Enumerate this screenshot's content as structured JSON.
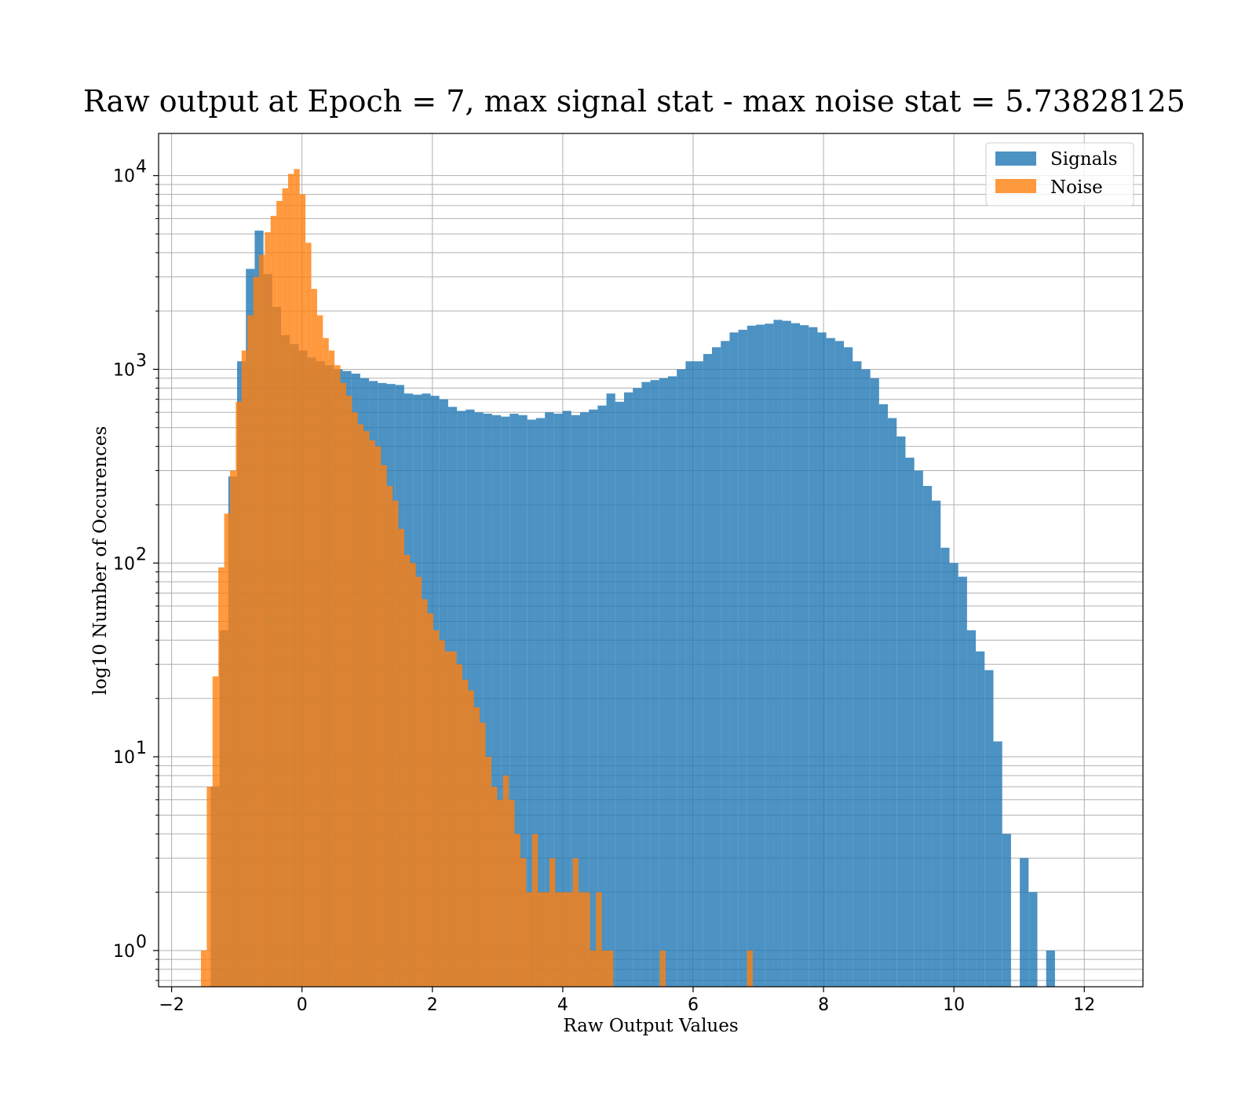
{
  "chart_data": {
    "type": "bar",
    "title": "Raw output at Epoch = 7, max signal stat - max noise stat = 5.73828125",
    "xlabel": "Raw Output Values",
    "ylabel": "log10 Number of Occurences",
    "xlim": [
      -2.2,
      12.9
    ],
    "ylim": [
      0.65,
      16500
    ],
    "yscale": "log",
    "grid": true,
    "legend_position": "top-right",
    "xticks": [
      -2,
      0,
      2,
      4,
      6,
      8,
      10,
      12
    ],
    "xtick_labels": [
      "−2",
      "0",
      "2",
      "4",
      "6",
      "8",
      "10",
      "12"
    ],
    "yticks": [
      1,
      10,
      100,
      1000,
      10000
    ],
    "ytick_labels": [
      "10",
      "10",
      "10",
      "10",
      "10"
    ],
    "ytick_exponents": [
      "0",
      "1",
      "2",
      "3",
      "4"
    ],
    "series": [
      {
        "name": "Signals",
        "color": "#1f77b4",
        "opacity": 0.8,
        "bin_start": -1.4,
        "bin_width": 0.1349,
        "values": [
          7,
          45,
          280,
          1100,
          3300,
          5200,
          3100,
          2100,
          1500,
          1350,
          1250,
          1150,
          1100,
          1050,
          1000,
          980,
          950,
          900,
          870,
          850,
          840,
          830,
          750,
          740,
          750,
          730,
          700,
          640,
          610,
          620,
          600,
          590,
          580,
          570,
          590,
          580,
          550,
          560,
          600,
          590,
          610,
          580,
          600,
          620,
          650,
          750,
          680,
          760,
          800,
          860,
          880,
          900,
          920,
          1000,
          1100,
          1100,
          1200,
          1300,
          1400,
          1550,
          1600,
          1680,
          1700,
          1720,
          1800,
          1780,
          1730,
          1690,
          1650,
          1550,
          1450,
          1400,
          1300,
          1100,
          1000,
          900,
          660,
          560,
          450,
          350,
          300,
          250,
          210,
          120,
          100,
          85,
          45,
          35,
          28,
          12,
          4,
          0,
          3,
          2,
          0,
          1
        ]
      },
      {
        "name": "Noise",
        "color": "#ff7f0e",
        "opacity": 0.8,
        "bin_start": -1.55,
        "bin_width": 0.0891,
        "values": [
          1,
          7,
          26,
          95,
          180,
          300,
          680,
          1250,
          1900,
          3000,
          3900,
          5100,
          6200,
          7400,
          8600,
          10200,
          10800,
          8000,
          4500,
          2600,
          1900,
          1450,
          1250,
          1050,
          850,
          730,
          600,
          520,
          480,
          430,
          400,
          320,
          250,
          210,
          150,
          110,
          100,
          85,
          65,
          55,
          45,
          40,
          35,
          35,
          30,
          25,
          22,
          18,
          15,
          10,
          7,
          6,
          8,
          6,
          4,
          3,
          2,
          4,
          2,
          2,
          3,
          2,
          2,
          2,
          3,
          2,
          2,
          1,
          2,
          1,
          1,
          0,
          0,
          0,
          0,
          0,
          0,
          0,
          0,
          1,
          0,
          0,
          0,
          0,
          0,
          0,
          0,
          0,
          0,
          0,
          0,
          0,
          0,
          0,
          1
        ]
      }
    ]
  }
}
